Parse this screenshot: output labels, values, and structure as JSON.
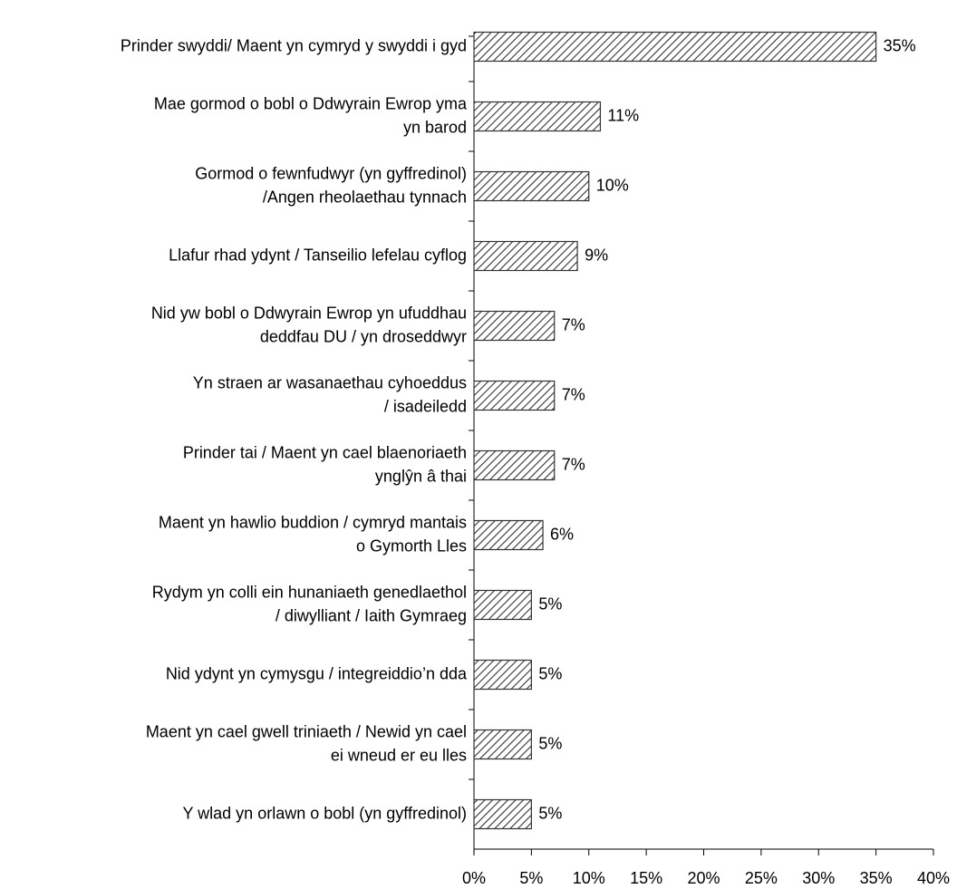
{
  "chart_data": {
    "type": "hbar",
    "categories": [
      [
        "Prinder swyddi/ Maent yn cymryd y swyddi i gyd"
      ],
      [
        "Mae gormod o bobl o Ddwyrain Ewrop yma",
        "yn barod"
      ],
      [
        "Gormod o fewnfudwyr (yn gyffredinol)",
        "/Angen rheolaethau tynnach"
      ],
      [
        "Llafur rhad ydynt / Tanseilio lefelau cyflog"
      ],
      [
        "Nid yw bobl o Ddwyrain Ewrop yn ufuddhau",
        "deddfau DU / yn droseddwyr"
      ],
      [
        "Yn straen ar wasanaethau cyhoeddus",
        "/ isadeiledd"
      ],
      [
        "Prinder tai / Maent yn cael blaenoriaeth",
        "ynglŷn â thai"
      ],
      [
        "Maent yn hawlio buddion / cymryd mantais",
        "o Gymorth Lles"
      ],
      [
        "Rydym yn colli ein hunaniaeth genedlaethol",
        "/ diwylliant / Iaith Gymraeg"
      ],
      [
        "Nid ydynt yn cymysgu / integreiddio’n dda"
      ],
      [
        "Maent yn cael gwell triniaeth / Newid yn cael",
        "ei wneud er eu lles"
      ],
      [
        "Y wlad yn orlawn o bobl (yn gyffredinol)"
      ]
    ],
    "values": [
      35,
      11,
      10,
      9,
      7,
      7,
      7,
      6,
      5,
      5,
      5,
      5
    ],
    "value_labels": [
      "35%",
      "11%",
      "10%",
      "9%",
      "7%",
      "7%",
      "7%",
      "6%",
      "5%",
      "5%",
      "5%",
      "5%"
    ],
    "color": "#333333",
    "hatched": true,
    "xlim": [
      0,
      40
    ],
    "xticks": [
      {
        "value": 0,
        "label": "0%"
      },
      {
        "value": 5,
        "label": "5%"
      },
      {
        "value": 10,
        "label": "10%"
      },
      {
        "value": 15,
        "label": "15%"
      },
      {
        "value": 20,
        "label": "20%"
      },
      {
        "value": 25,
        "label": "25%"
      },
      {
        "value": 30,
        "label": "30%"
      },
      {
        "value": 35,
        "label": "35%"
      },
      {
        "value": 40,
        "label": "40%"
      }
    ]
  }
}
